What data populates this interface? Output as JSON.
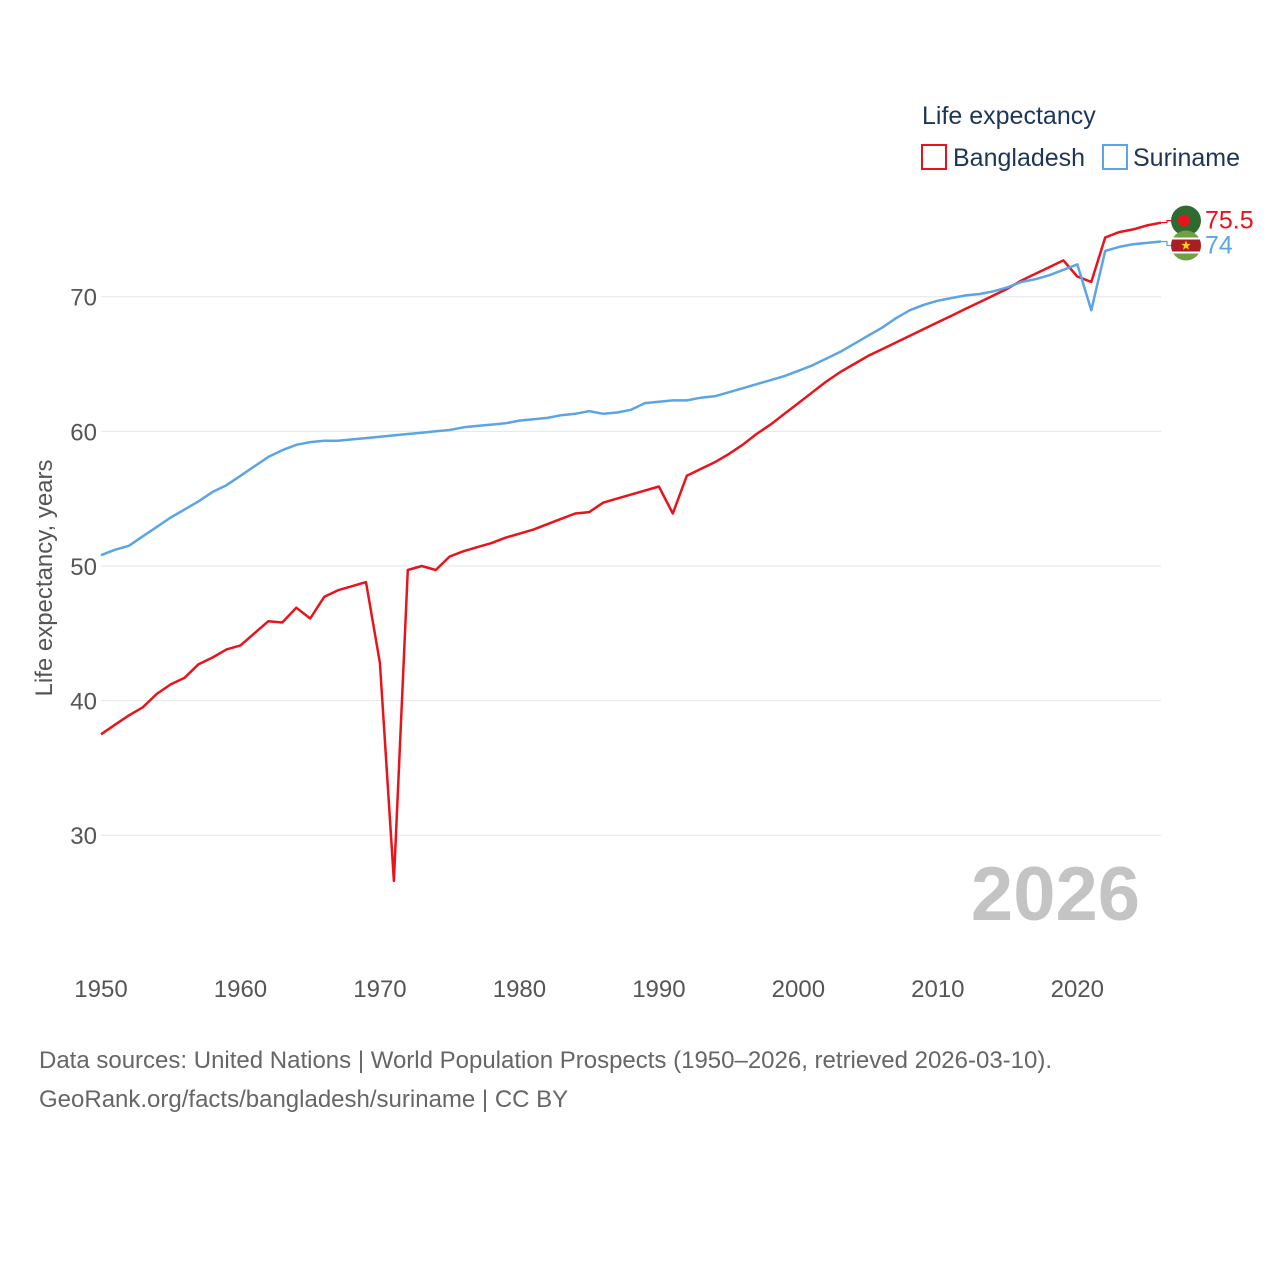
{
  "chart_data": {
    "type": "line",
    "title": "",
    "xlabel": "",
    "ylabel": "Life expectancy, years",
    "xlim": [
      1950,
      2026
    ],
    "ylim": [
      24,
      78
    ],
    "x_ticks": [
      1950,
      1960,
      1970,
      1980,
      1990,
      2000,
      2010,
      2020
    ],
    "y_ticks": [
      30,
      40,
      50,
      60,
      70
    ],
    "legend": {
      "title": "Life expectancy",
      "placement": "top-right"
    },
    "year_label": "2026",
    "series": [
      {
        "name": "Bangladesh",
        "color": "#e8141c",
        "end_label": "75.5",
        "flag": "bangladesh-flag-icon",
        "x": [
          1950,
          1951,
          1952,
          1953,
          1954,
          1955,
          1956,
          1957,
          1958,
          1959,
          1960,
          1961,
          1962,
          1963,
          1964,
          1965,
          1966,
          1967,
          1968,
          1969,
          1970,
          1971,
          1972,
          1973,
          1974,
          1975,
          1976,
          1977,
          1978,
          1979,
          1980,
          1981,
          1982,
          1983,
          1984,
          1985,
          1986,
          1987,
          1988,
          1989,
          1990,
          1991,
          1992,
          1993,
          1994,
          1995,
          1996,
          1997,
          1998,
          1999,
          2000,
          2001,
          2002,
          2003,
          2004,
          2005,
          2006,
          2007,
          2008,
          2009,
          2010,
          2011,
          2012,
          2013,
          2014,
          2015,
          2016,
          2017,
          2018,
          2019,
          2020,
          2021,
          2022,
          2023,
          2024,
          2025,
          2026
        ],
        "values": [
          37.5,
          38.2,
          38.9,
          39.5,
          40.5,
          41.2,
          41.7,
          42.7,
          43.2,
          43.8,
          44.1,
          45.0,
          45.9,
          45.8,
          46.9,
          46.1,
          47.7,
          48.2,
          48.5,
          48.8,
          42.8,
          26.6,
          49.7,
          50.0,
          49.7,
          50.7,
          51.1,
          51.4,
          51.7,
          52.1,
          52.4,
          52.7,
          53.1,
          53.5,
          53.9,
          54.0,
          54.7,
          55.0,
          55.3,
          55.6,
          55.9,
          53.9,
          56.7,
          57.2,
          57.7,
          58.3,
          59.0,
          59.8,
          60.5,
          61.3,
          62.1,
          62.9,
          63.7,
          64.4,
          65.0,
          65.6,
          66.1,
          66.6,
          67.1,
          67.6,
          68.1,
          68.6,
          69.1,
          69.6,
          70.1,
          70.6,
          71.2,
          71.7,
          72.2,
          72.7,
          71.5,
          71.1,
          74.4,
          74.8,
          75.0,
          75.3,
          75.5
        ]
      },
      {
        "name": "Suriname",
        "color": "#5ca5e4",
        "end_label": "74",
        "flag": "suriname-flag-icon",
        "x": [
          1950,
          1951,
          1952,
          1953,
          1954,
          1955,
          1956,
          1957,
          1958,
          1959,
          1960,
          1961,
          1962,
          1963,
          1964,
          1965,
          1966,
          1967,
          1968,
          1969,
          1970,
          1971,
          1972,
          1973,
          1974,
          1975,
          1976,
          1977,
          1978,
          1979,
          1980,
          1981,
          1982,
          1983,
          1984,
          1985,
          1986,
          1987,
          1988,
          1989,
          1990,
          1991,
          1992,
          1993,
          1994,
          1995,
          1996,
          1997,
          1998,
          1999,
          2000,
          2001,
          2002,
          2003,
          2004,
          2005,
          2006,
          2007,
          2008,
          2009,
          2010,
          2011,
          2012,
          2013,
          2014,
          2015,
          2016,
          2017,
          2018,
          2019,
          2020,
          2021,
          2022,
          2023,
          2024,
          2025,
          2026
        ],
        "values": [
          50.8,
          51.2,
          51.5,
          52.2,
          52.9,
          53.6,
          54.2,
          54.8,
          55.5,
          56.0,
          56.7,
          57.4,
          58.1,
          58.6,
          59.0,
          59.2,
          59.3,
          59.3,
          59.4,
          59.5,
          59.6,
          59.7,
          59.8,
          59.9,
          60.0,
          60.1,
          60.3,
          60.4,
          60.5,
          60.6,
          60.8,
          60.9,
          61.0,
          61.2,
          61.3,
          61.5,
          61.3,
          61.4,
          61.6,
          62.1,
          62.2,
          62.3,
          62.3,
          62.5,
          62.6,
          62.9,
          63.2,
          63.5,
          63.8,
          64.1,
          64.5,
          64.9,
          65.4,
          65.9,
          66.5,
          67.1,
          67.7,
          68.4,
          69.0,
          69.4,
          69.7,
          69.9,
          70.1,
          70.2,
          70.4,
          70.7,
          71.1,
          71.3,
          71.6,
          72.0,
          72.4,
          69.0,
          73.4,
          73.7,
          73.9,
          74.0,
          74.1
        ]
      }
    ]
  },
  "footer": {
    "line1": "Data sources: United Nations | World Population Prospects (1950–2026, retrieved 2026-03-10).",
    "line2": "GeoRank.org/facts/bangladesh/suriname | CC BY"
  }
}
